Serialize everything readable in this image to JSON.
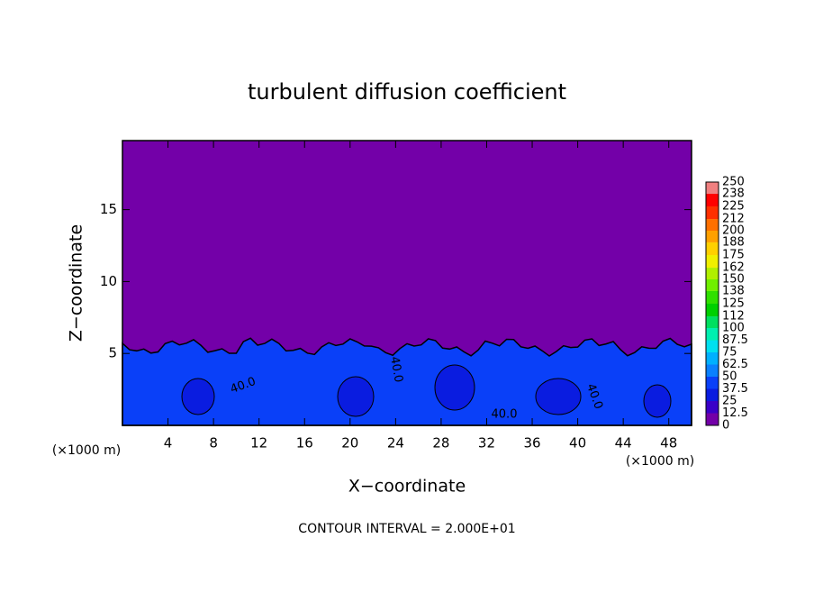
{
  "chart_data": {
    "type": "contour",
    "title": "turbulent diffusion coefficient",
    "x_label": "X−coordinate",
    "y_label": "Z−coordinate",
    "x_unit_left": "(×1000 m)",
    "x_unit_right": "(×1000 m)",
    "footer": "CONTOUR INTERVAL = 2.000E+01",
    "contour_labels": [
      "40.0",
      "40.0",
      "40.0",
      "40.0"
    ],
    "xlim": [
      0,
      50
    ],
    "xticks": [
      4,
      8,
      12,
      16,
      20,
      24,
      28,
      32,
      36,
      40,
      44,
      48
    ],
    "ylim": [
      0,
      19.8
    ],
    "yticks": [
      5,
      10,
      15
    ],
    "colorbar": {
      "levels": [
        0,
        12.5,
        25,
        37.5,
        50,
        62.5,
        75,
        87.5,
        100,
        112,
        125,
        138,
        150,
        162,
        175,
        188,
        200,
        212,
        225,
        238,
        250
      ],
      "colors": [
        "#7300a8",
        "#3a00c8",
        "#0a1ce0",
        "#0a40f8",
        "#0a80ff",
        "#00b0ff",
        "#00e0f0",
        "#00f0b0",
        "#00e060",
        "#00d000",
        "#30e000",
        "#70f000",
        "#b0f000",
        "#f0f000",
        "#ffd000",
        "#ffa000",
        "#ff7000",
        "#ff3000",
        "#ff0000",
        "#f08080"
      ]
    }
  }
}
